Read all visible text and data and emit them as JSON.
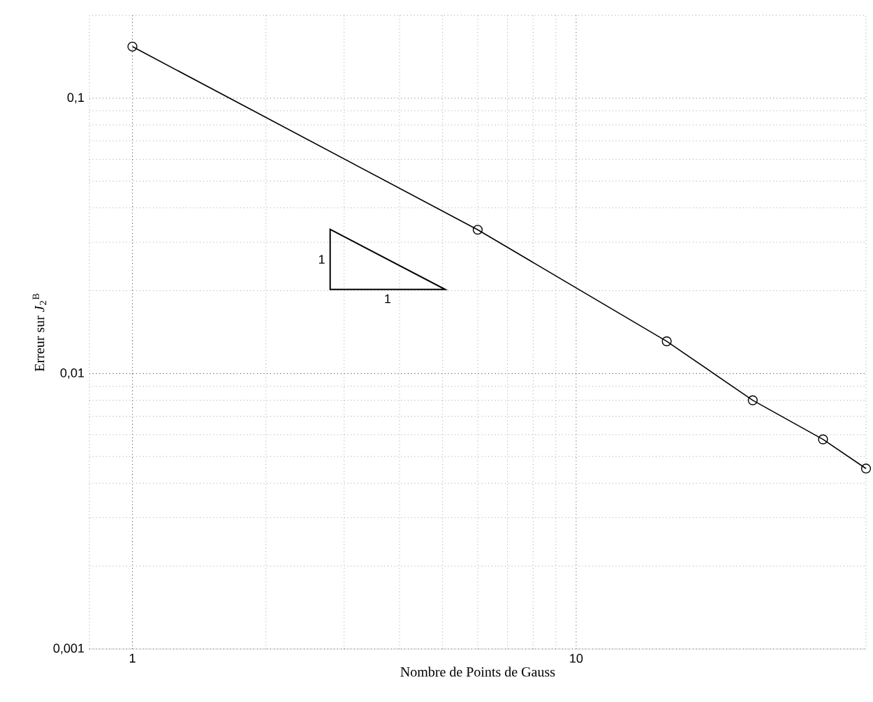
{
  "chart_data": {
    "type": "line",
    "xlabel": "Nombre de Points de Gauss",
    "ylabel": "Erreur sur *J*$_{2}$$^{B}$",
    "x": [
      1,
      6,
      16,
      25,
      36,
      45
    ],
    "series": [
      {
        "color": "#000000",
        "values": [
          0.154,
          0.0333,
          0.0131,
          0.008,
          0.00577,
          0.00452
        ]
      }
    ],
    "log": "xy",
    "xlim": [
      0.8,
      45
    ],
    "ylim": [
      0.001,
      0.2
    ],
    "xticks": [
      1,
      10
    ],
    "yticks": [
      {
        "value": 0.001,
        "label": "0,001"
      },
      {
        "value": 0.01,
        "label": "0,01"
      },
      {
        "value": 0.1,
        "label": "0,1"
      }
    ],
    "grid": true,
    "marker": "circle",
    "line_style": "solid",
    "annotations": [
      "1",
      "1"
    ]
  }
}
